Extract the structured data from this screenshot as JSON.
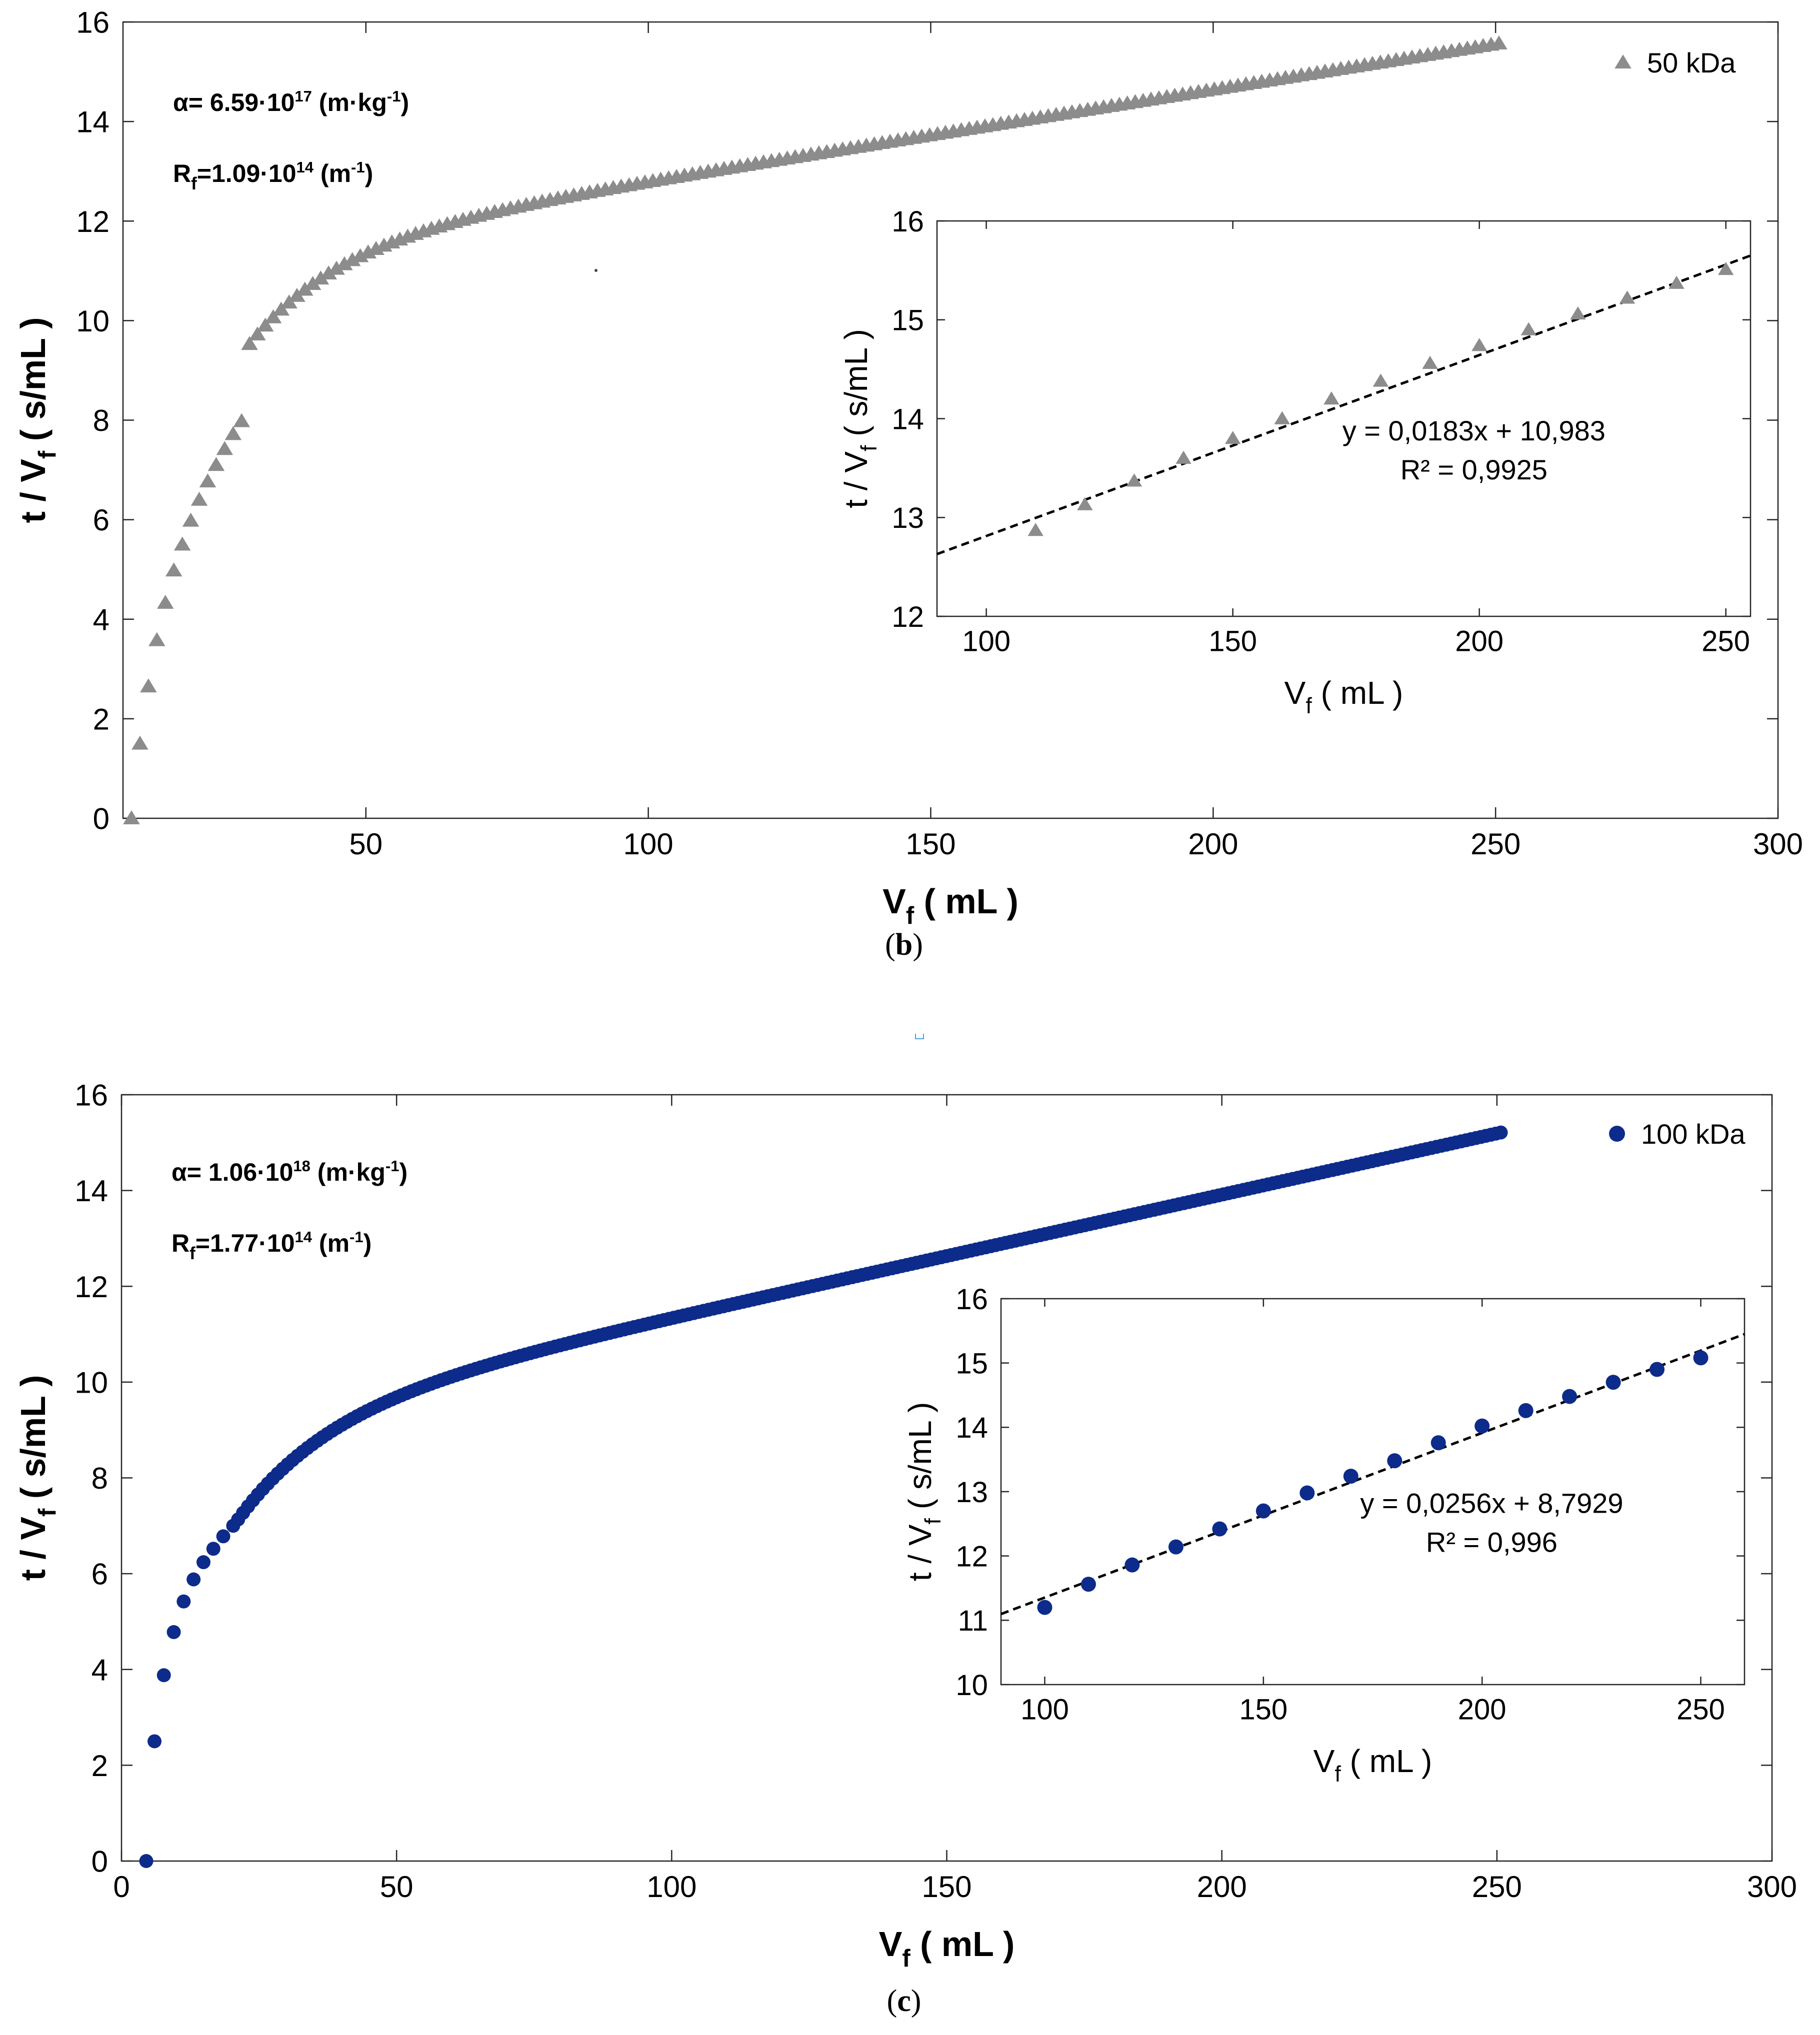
{
  "chart_data": [
    {
      "id": "b",
      "type": "scatter",
      "panel_label": "b",
      "marker": "triangle",
      "color": "#8c8c8c",
      "xlabel_main": "V",
      "xlabel_sub": "f",
      "xlabel_unit": "( mL )",
      "ylabel_main": "t / V",
      "ylabel_sub": "f",
      "ylabel_unit": "( s/mL )",
      "xlim": [
        7,
        300
      ],
      "ylim": [
        0,
        16
      ],
      "xticks": [
        50,
        100,
        150,
        200,
        250,
        300
      ],
      "yticks": [
        0,
        2,
        4,
        6,
        8,
        10,
        12,
        14,
        16
      ],
      "legend": "50 kDa",
      "legend_position": "top-right",
      "annotations": {
        "alpha_prefix": "α= 6.59·10",
        "alpha_exp": "17",
        "alpha_unit_pre": " (m·kg",
        "alpha_unit_exp": "-1",
        "alpha_unit_post": ")",
        "rf_prefix": "R",
        "rf_sub": "f",
        "rf_mid": "=1.09·10",
        "rf_exp": "14",
        "rf_unit_pre": " (m",
        "rf_unit_exp": "-1",
        "rf_unit_post": ")"
      },
      "curve": {
        "x0": 8.5,
        "a": 0.0183,
        "b": 10.983,
        "c": 7.35,
        "k": 0.0625,
        "x_end": 251,
        "step": 1.4,
        "early_points": [
          [
            8.5,
            0.0
          ],
          [
            10,
            1.5
          ],
          [
            11.5,
            2.65
          ],
          [
            13,
            3.58
          ],
          [
            14.5,
            4.33
          ],
          [
            16,
            4.98
          ],
          [
            17.5,
            5.5
          ],
          [
            19,
            5.98
          ],
          [
            20.5,
            6.4
          ],
          [
            22,
            6.77
          ],
          [
            23.5,
            7.1
          ],
          [
            25,
            7.42
          ],
          [
            26.5,
            7.72
          ],
          [
            28,
            7.98
          ]
        ]
      },
      "inset": {
        "xlabel_main": "V",
        "xlabel_sub": "f",
        "xlabel_unit": "( mL )",
        "ylabel_main": "t / V",
        "ylabel_sub": "f",
        "ylabel_unit": "( s/mL )",
        "xlim": [
          90,
          255
        ],
        "ylim": [
          12,
          16
        ],
        "xticks": [
          100,
          150,
          200,
          250
        ],
        "yticks": [
          12,
          13,
          14,
          15,
          16
        ],
        "fit_slope": 0.0183,
        "fit_intercept": 10.983,
        "equation": "y = 0,0183x + 10,983",
        "r_squared": "R² = 0,9925",
        "x": [
          110,
          120,
          130,
          140,
          150,
          160,
          170,
          180,
          190,
          200,
          210,
          220,
          230,
          240,
          250
        ],
        "y": [
          12.87,
          13.13,
          13.37,
          13.6,
          13.8,
          14.0,
          14.2,
          14.38,
          14.56,
          14.74,
          14.9,
          15.06,
          15.22,
          15.37,
          15.51
        ]
      }
    },
    {
      "id": "c",
      "type": "scatter",
      "panel_label": "c",
      "marker": "circle",
      "color": "#0d2b8a",
      "xlabel_main": "V",
      "xlabel_sub": "f",
      "xlabel_unit": "( mL )",
      "ylabel_main": "t / V",
      "ylabel_sub": "f",
      "ylabel_unit": "( s/mL )",
      "xlim": [
        0,
        300
      ],
      "ylim": [
        0,
        16
      ],
      "xticks": [
        0,
        50,
        100,
        150,
        200,
        250,
        300
      ],
      "yticks": [
        0,
        2,
        4,
        6,
        8,
        10,
        12,
        14,
        16
      ],
      "legend": "100 kDa",
      "legend_position": "top-right",
      "annotations": {
        "alpha_prefix": "α= 1.06·10",
        "alpha_exp": "18",
        "alpha_unit_pre": " (m·kg",
        "alpha_unit_exp": "-1",
        "alpha_unit_post": ")",
        "rf_prefix": "R",
        "rf_sub": "f",
        "rf_mid": "=1.77·10",
        "rf_exp": "14",
        "rf_unit_pre": " (m",
        "rf_unit_exp": "-1",
        "rf_unit_post": ")"
      },
      "curve": {
        "x0": 4.5,
        "a": 0.0256,
        "b": 8.7929,
        "c": 6.0,
        "k": 0.06,
        "x_end": 251,
        "step": 0.9,
        "early_points": [
          [
            4.5,
            0.0
          ],
          [
            6,
            2.5
          ],
          [
            7.7,
            3.88
          ],
          [
            9.5,
            4.78
          ],
          [
            11.3,
            5.42
          ],
          [
            13.1,
            5.88
          ],
          [
            14.9,
            6.24
          ],
          [
            16.7,
            6.52
          ],
          [
            18.5,
            6.78
          ],
          [
            20.3,
            7.0
          ]
        ]
      },
      "inset": {
        "xlabel_main": "V",
        "xlabel_sub": "f",
        "xlabel_unit": "( mL )",
        "ylabel_main": "t / V",
        "ylabel_sub": "f",
        "ylabel_unit": "( s/mL )",
        "xlim": [
          90,
          260
        ],
        "ylim": [
          10,
          16
        ],
        "xticks": [
          100,
          150,
          200,
          250
        ],
        "yticks": [
          10,
          11,
          12,
          13,
          14,
          15,
          16
        ],
        "fit_slope": 0.0256,
        "fit_intercept": 8.7929,
        "equation": "y = 0,0256x + 8,7929",
        "r_squared": "R² = 0,996",
        "x": [
          100,
          110,
          120,
          130,
          140,
          150,
          160,
          170,
          180,
          190,
          200,
          210,
          220,
          230,
          240,
          250
        ],
        "y": [
          11.2,
          11.56,
          11.86,
          12.14,
          12.42,
          12.7,
          12.98,
          13.24,
          13.48,
          13.76,
          14.02,
          14.26,
          14.48,
          14.7,
          14.9,
          15.08
        ]
      }
    }
  ]
}
